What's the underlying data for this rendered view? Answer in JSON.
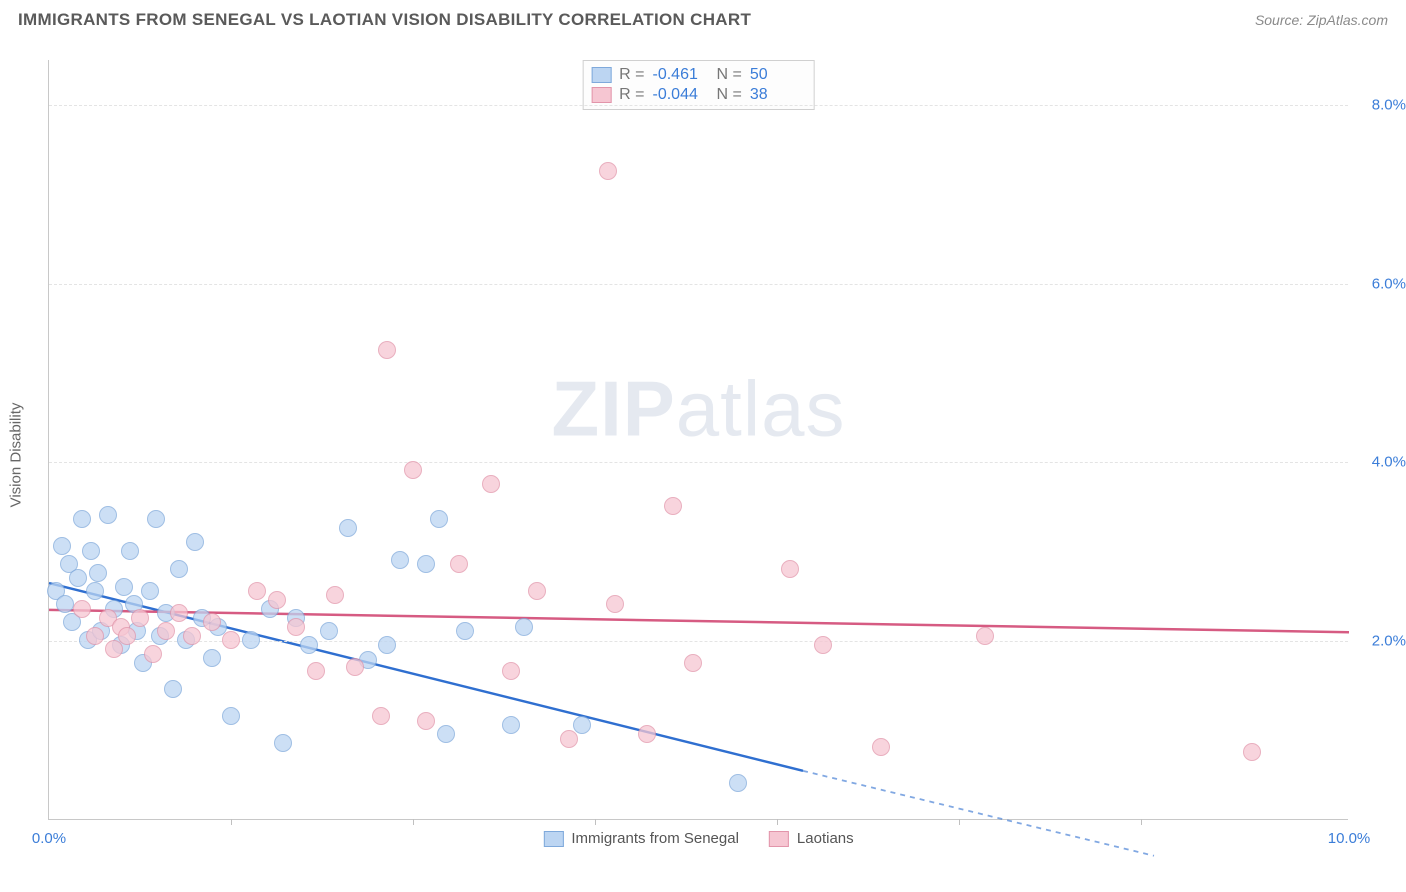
{
  "title": "IMMIGRANTS FROM SENEGAL VS LAOTIAN VISION DISABILITY CORRELATION CHART",
  "source": "Source: ZipAtlas.com",
  "watermark_a": "ZIP",
  "watermark_b": "atlas",
  "ylabel": "Vision Disability",
  "chart": {
    "type": "scatter",
    "xlim": [
      0,
      10
    ],
    "ylim": [
      0,
      8.5
    ],
    "xticks": [
      0,
      10
    ],
    "xtick_minor": [
      1.4,
      2.8,
      4.2,
      5.6,
      7.0,
      8.4
    ],
    "yticks": [
      2,
      4,
      6,
      8
    ],
    "ytick_labels": [
      "2.0%",
      "4.0%",
      "6.0%",
      "8.0%"
    ],
    "xtick_labels": [
      "0.0%",
      "10.0%"
    ],
    "background_color": "#ffffff",
    "grid_color": "#e4e4e4",
    "axis_color": "#c8c8c8",
    "marker_radius": 9,
    "series": [
      {
        "name": "Immigrants from Senegal",
        "fill": "#bcd5f2",
        "stroke": "#7fa9db",
        "line_color": "#2f6fd0",
        "R": "-0.461",
        "N": "50",
        "trend": {
          "x1": 0,
          "y1": 2.65,
          "x2": 5.8,
          "y2": 0.55,
          "x_solid_end": 5.8,
          "x_dash_end": 8.5,
          "y_dash_end": -0.4
        },
        "points": [
          [
            0.05,
            2.55
          ],
          [
            0.1,
            3.05
          ],
          [
            0.12,
            2.4
          ],
          [
            0.15,
            2.85
          ],
          [
            0.18,
            2.2
          ],
          [
            0.22,
            2.7
          ],
          [
            0.25,
            3.35
          ],
          [
            0.3,
            2.0
          ],
          [
            0.32,
            3.0
          ],
          [
            0.35,
            2.55
          ],
          [
            0.38,
            2.75
          ],
          [
            0.4,
            2.1
          ],
          [
            0.45,
            3.4
          ],
          [
            0.5,
            2.35
          ],
          [
            0.55,
            1.95
          ],
          [
            0.58,
            2.6
          ],
          [
            0.62,
            3.0
          ],
          [
            0.65,
            2.4
          ],
          [
            0.68,
            2.1
          ],
          [
            0.72,
            1.75
          ],
          [
            0.78,
            2.55
          ],
          [
            0.82,
            3.35
          ],
          [
            0.85,
            2.05
          ],
          [
            0.9,
            2.3
          ],
          [
            0.95,
            1.45
          ],
          [
            1.0,
            2.8
          ],
          [
            1.05,
            2.0
          ],
          [
            1.12,
            3.1
          ],
          [
            1.18,
            2.25
          ],
          [
            1.25,
            1.8
          ],
          [
            1.3,
            2.15
          ],
          [
            1.4,
            1.15
          ],
          [
            1.55,
            2.0
          ],
          [
            1.7,
            2.35
          ],
          [
            1.8,
            0.85
          ],
          [
            1.9,
            2.25
          ],
          [
            2.0,
            1.95
          ],
          [
            2.15,
            2.1
          ],
          [
            2.3,
            3.25
          ],
          [
            2.45,
            1.78
          ],
          [
            2.6,
            1.95
          ],
          [
            2.7,
            2.9
          ],
          [
            2.9,
            2.85
          ],
          [
            3.05,
            0.95
          ],
          [
            3.2,
            2.1
          ],
          [
            3.55,
            1.05
          ],
          [
            3.65,
            2.15
          ],
          [
            4.1,
            1.05
          ],
          [
            5.3,
            0.4
          ],
          [
            3.0,
            3.35
          ]
        ]
      },
      {
        "name": "Laotians",
        "fill": "#f6c6d2",
        "stroke": "#e295aa",
        "line_color": "#d65b82",
        "R": "-0.044",
        "N": "38",
        "trend": {
          "x1": 0,
          "y1": 2.35,
          "x2": 10,
          "y2": 2.1,
          "x_solid_end": 10,
          "x_dash_end": 10,
          "y_dash_end": 2.1
        },
        "points": [
          [
            0.25,
            2.35
          ],
          [
            0.35,
            2.05
          ],
          [
            0.45,
            2.25
          ],
          [
            0.5,
            1.9
          ],
          [
            0.55,
            2.15
          ],
          [
            0.6,
            2.05
          ],
          [
            0.7,
            2.25
          ],
          [
            0.8,
            1.85
          ],
          [
            0.9,
            2.1
          ],
          [
            1.0,
            2.3
          ],
          [
            1.1,
            2.05
          ],
          [
            1.25,
            2.2
          ],
          [
            1.4,
            2.0
          ],
          [
            1.6,
            2.55
          ],
          [
            1.75,
            2.45
          ],
          [
            1.9,
            2.15
          ],
          [
            2.05,
            1.65
          ],
          [
            2.2,
            2.5
          ],
          [
            2.35,
            1.7
          ],
          [
            2.55,
            1.15
          ],
          [
            2.6,
            5.25
          ],
          [
            2.8,
            3.9
          ],
          [
            2.9,
            1.1
          ],
          [
            3.15,
            2.85
          ],
          [
            3.4,
            3.75
          ],
          [
            3.55,
            1.65
          ],
          [
            3.75,
            2.55
          ],
          [
            4.0,
            0.9
          ],
          [
            4.3,
            7.25
          ],
          [
            4.35,
            2.4
          ],
          [
            4.8,
            3.5
          ],
          [
            4.95,
            1.75
          ],
          [
            5.7,
            2.8
          ],
          [
            5.95,
            1.95
          ],
          [
            6.4,
            0.8
          ],
          [
            7.2,
            2.05
          ],
          [
            9.25,
            0.75
          ],
          [
            4.6,
            0.95
          ]
        ]
      }
    ],
    "legend": {
      "stats_labels": {
        "R": "R =",
        "N": "N ="
      },
      "series_labels": [
        "Immigrants from Senegal",
        "Laotians"
      ]
    }
  }
}
